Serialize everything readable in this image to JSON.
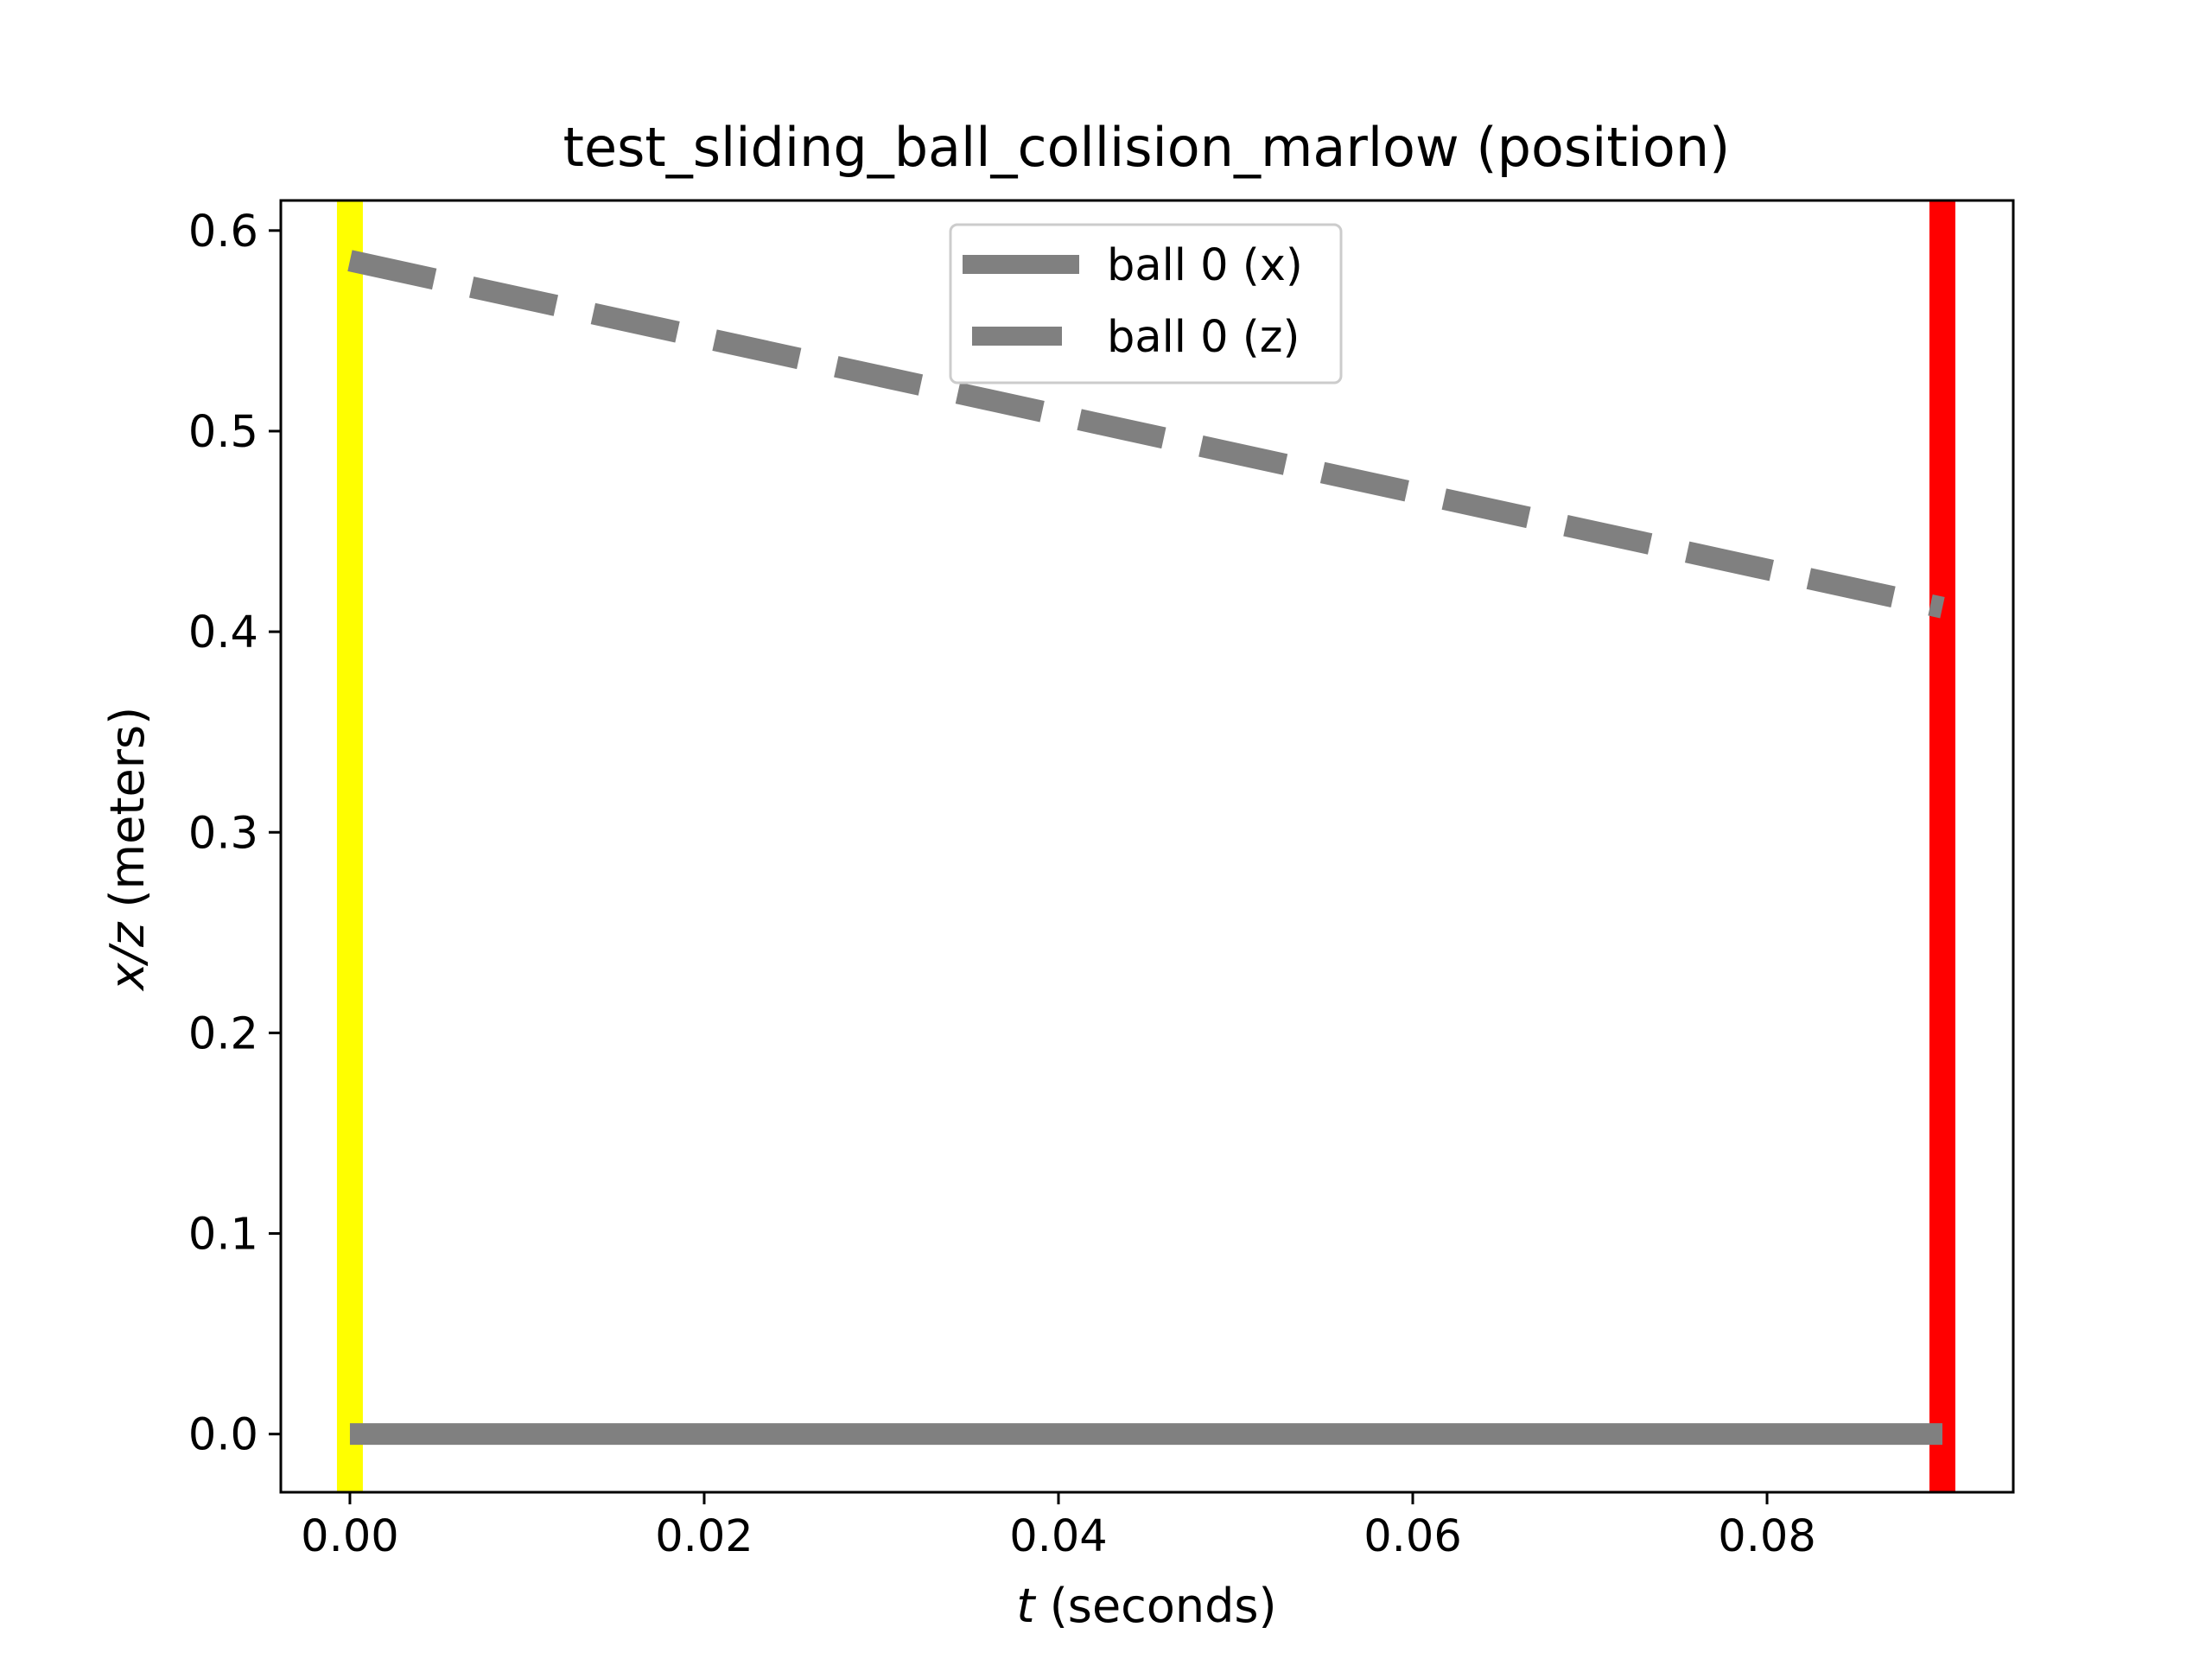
{
  "chart_data": {
    "type": "line",
    "title": "test_sliding_ball_collision_marlow (position)",
    "xlabel": {
      "var": "t",
      "rest": " (seconds)"
    },
    "ylabel": {
      "var": "x/z",
      "rest": " (meters)"
    },
    "xlim": [
      -0.0039,
      0.0939
    ],
    "ylim": [
      -0.029,
      0.615
    ],
    "xticks": [
      "0.00",
      "0.02",
      "0.04",
      "0.06",
      "0.08"
    ],
    "xtick_values": [
      0.0,
      0.02,
      0.04,
      0.06,
      0.08
    ],
    "yticks": [
      "0.0",
      "0.1",
      "0.2",
      "0.3",
      "0.4",
      "0.5",
      "0.6"
    ],
    "ytick_values": [
      0.0,
      0.1,
      0.2,
      0.3,
      0.4,
      0.5,
      0.6
    ],
    "grid": false,
    "legend_position": "upper-center",
    "series": [
      {
        "name": "ball 0 (x)",
        "style": "solid",
        "color": "#808080",
        "x": [
          0.0,
          0.0899
        ],
        "y": [
          0.0,
          0.0
        ]
      },
      {
        "name": "ball 0 (z)",
        "style": "dashed",
        "color": "#808080",
        "x": [
          0.0,
          0.0899
        ],
        "y": [
          0.585,
          0.412
        ]
      }
    ],
    "vertical_markers": [
      {
        "x": 0.0,
        "color": "#ffff00"
      },
      {
        "x": 0.0899,
        "color": "#ff0000"
      }
    ]
  }
}
